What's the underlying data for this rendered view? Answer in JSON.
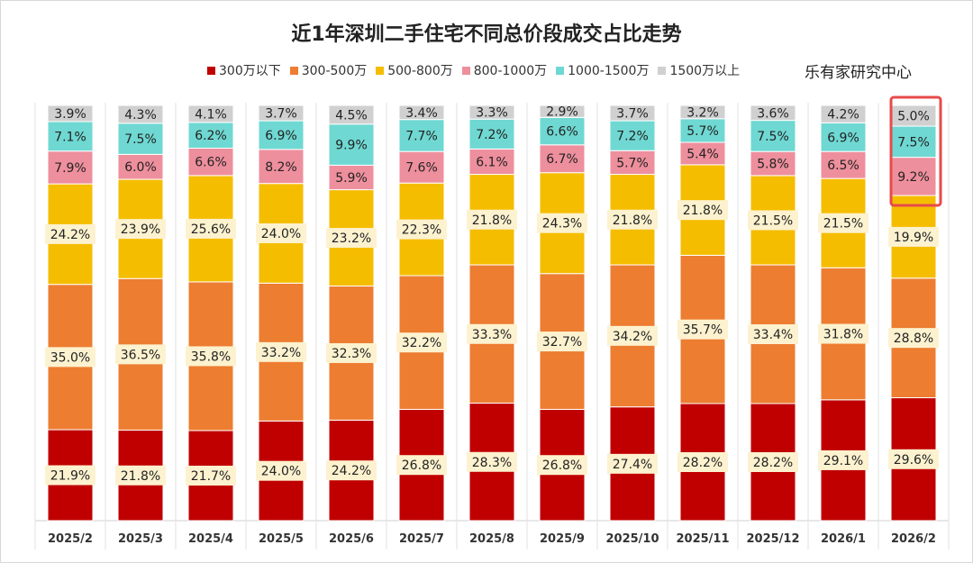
{
  "chart_data": {
    "type": "bar",
    "stacked": true,
    "title": "近1年深圳二手住宅不同总价段成交占比走势",
    "source_label": "乐有家研究中心",
    "categories": [
      "2025/2",
      "2025/3",
      "2025/4",
      "2025/5",
      "2025/6",
      "2025/7",
      "2025/8",
      "2025/9",
      "2025/10",
      "2025/11",
      "2025/12",
      "2026/1",
      "2026/2"
    ],
    "series": [
      {
        "name": "300万以下",
        "color": "#c00000",
        "values": [
          21.9,
          21.8,
          21.7,
          24.0,
          24.2,
          26.8,
          28.3,
          26.8,
          27.4,
          28.2,
          28.2,
          29.1,
          29.6
        ]
      },
      {
        "name": "300-500万",
        "color": "#ed7d31",
        "values": [
          35.0,
          36.5,
          35.8,
          33.2,
          32.3,
          32.2,
          33.3,
          32.7,
          34.2,
          35.7,
          33.4,
          31.8,
          28.8
        ]
      },
      {
        "name": "500-800万",
        "color": "#f5bd00",
        "values": [
          24.2,
          23.9,
          25.6,
          24.0,
          23.2,
          22.3,
          21.8,
          24.3,
          21.8,
          21.8,
          21.5,
          21.5,
          19.9
        ]
      },
      {
        "name": "800-1000万",
        "color": "#ee8f9d",
        "values": [
          7.9,
          6.0,
          6.6,
          8.2,
          5.9,
          7.6,
          6.1,
          6.7,
          5.7,
          5.4,
          5.8,
          6.5,
          9.2
        ]
      },
      {
        "name": "1000-1500万",
        "color": "#6fd8d2",
        "values": [
          7.1,
          7.5,
          6.2,
          6.9,
          9.9,
          7.7,
          7.2,
          6.6,
          7.2,
          5.7,
          7.5,
          6.9,
          7.5
        ]
      },
      {
        "name": "1500万以上",
        "color": "#d0d0d0",
        "values": [
          3.9,
          4.3,
          4.1,
          3.7,
          4.5,
          3.4,
          3.3,
          2.9,
          3.7,
          3.2,
          3.6,
          4.2,
          5.0
        ]
      }
    ],
    "unit": "%",
    "ylim": [
      0,
      100
    ],
    "grid": false,
    "legend": "top-right",
    "highlighted_category": "2026/2",
    "highlight_color": "#e84a4a",
    "label_bg_color": "#fdf2cf"
  }
}
